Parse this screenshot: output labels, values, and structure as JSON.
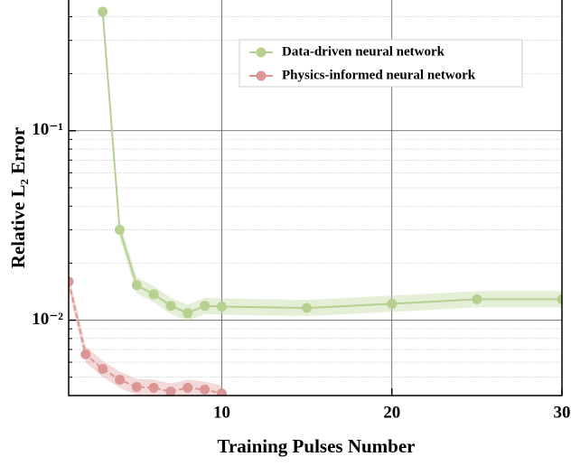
{
  "chart_data": {
    "type": "line",
    "xlabel": "Training Pulses Number",
    "ylabel": "Relative L₂ Error",
    "xlim": [
      1,
      30
    ],
    "xticks": [
      10,
      20,
      30
    ],
    "ylim": [
      0.004,
      0.49
    ],
    "log_y": true,
    "grid": true,
    "yticks": [
      {
        "value": 0.01,
        "label": "10⁻²"
      },
      {
        "value": 0.1,
        "label": "10⁻¹"
      }
    ],
    "minor_yticks": [
      0.005,
      0.006,
      0.007,
      0.008,
      0.009,
      0.02,
      0.03,
      0.04,
      0.05,
      0.06,
      0.07,
      0.08,
      0.09,
      0.2,
      0.3,
      0.4
    ],
    "legend": "upper right",
    "series": [
      {
        "name": "Data-driven neural network",
        "color": "#b5d08f",
        "x": [
          3,
          4,
          5,
          6,
          7,
          8,
          9,
          10,
          15,
          20,
          25,
          30
        ],
        "values": [
          0.425,
          0.03,
          0.0153,
          0.0137,
          0.0119,
          0.0109,
          0.0119,
          0.0118,
          0.0116,
          0.0122,
          0.0129,
          0.0129
        ]
      },
      {
        "name": "Physics-informed neural network",
        "color": "#dd9696",
        "x": [
          1,
          2,
          3,
          4,
          5,
          6,
          7,
          8,
          9,
          10
        ],
        "values": [
          0.016,
          0.0066,
          0.00553,
          0.00485,
          0.00444,
          0.0044,
          0.0042,
          0.0044,
          0.0043,
          0.0041
        ]
      }
    ]
  }
}
